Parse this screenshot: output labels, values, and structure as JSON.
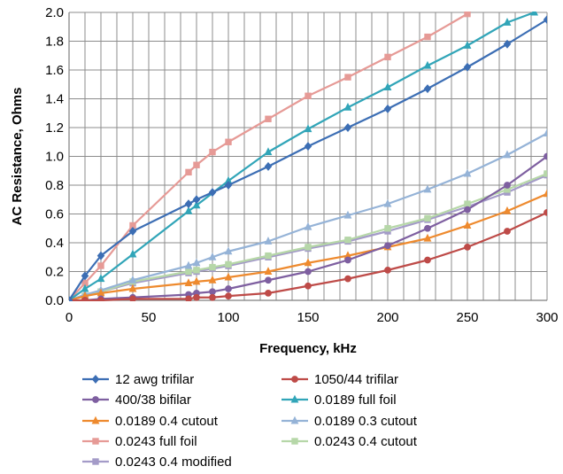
{
  "chart_data": {
    "type": "line",
    "xlabel": "Frequency, kHz",
    "ylabel": "AC Resistance, Ohms",
    "xlim": [
      0,
      300
    ],
    "ylim": [
      0,
      2.0
    ],
    "x_ticks": [
      "0",
      "50",
      "100",
      "150",
      "200",
      "250",
      "300"
    ],
    "y_ticks": [
      "0.0",
      "0.2",
      "0.4",
      "0.6",
      "0.8",
      "1.0",
      "1.2",
      "1.4",
      "1.6",
      "1.8",
      "2.0"
    ],
    "grid": true,
    "legend_position": "bottom",
    "series": [
      {
        "name": "12 awg trifilar",
        "color": "#3c6eb4",
        "marker": "diamond",
        "x": [
          0,
          10,
          20,
          40,
          75,
          80,
          90,
          100,
          125,
          150,
          175,
          200,
          225,
          250,
          275,
          300
        ],
        "y": [
          0.0,
          0.17,
          0.31,
          0.48,
          0.67,
          0.7,
          0.75,
          0.8,
          0.93,
          1.07,
          1.2,
          1.33,
          1.47,
          1.62,
          1.78,
          1.95
        ]
      },
      {
        "name": "1050/44 trifilar",
        "color": "#be4b48",
        "marker": "circle",
        "x": [
          0,
          10,
          20,
          40,
          75,
          80,
          90,
          100,
          125,
          150,
          175,
          200,
          225,
          250,
          275,
          300
        ],
        "y": [
          0.0,
          0.0,
          0.0,
          0.01,
          0.01,
          0.02,
          0.02,
          0.03,
          0.05,
          0.1,
          0.15,
          0.21,
          0.28,
          0.37,
          0.48,
          0.61
        ]
      },
      {
        "name": "400/38 bifilar",
        "color": "#7e5fa0",
        "marker": "circle",
        "x": [
          0,
          10,
          20,
          40,
          75,
          80,
          90,
          100,
          125,
          150,
          175,
          200,
          225,
          250,
          275,
          300
        ],
        "y": [
          0.0,
          0.0,
          0.01,
          0.02,
          0.04,
          0.05,
          0.06,
          0.08,
          0.14,
          0.2,
          0.28,
          0.38,
          0.5,
          0.63,
          0.8,
          1.0
        ]
      },
      {
        "name": "0.0189 full foil",
        "color": "#31a5b8",
        "marker": "triangle",
        "x": [
          0,
          10,
          20,
          40,
          75,
          80,
          100,
          125,
          150,
          175,
          200,
          225,
          250,
          275,
          292
        ],
        "y": [
          0.0,
          0.08,
          0.15,
          0.32,
          0.62,
          0.66,
          0.83,
          1.03,
          1.19,
          1.34,
          1.48,
          1.63,
          1.77,
          1.93,
          2.0
        ]
      },
      {
        "name": "0.0189 0.4 cutout",
        "color": "#ee8a2e",
        "marker": "triangle",
        "x": [
          0,
          10,
          20,
          40,
          75,
          80,
          90,
          100,
          125,
          150,
          175,
          200,
          225,
          250,
          275,
          300
        ],
        "y": [
          0.0,
          0.03,
          0.05,
          0.08,
          0.12,
          0.13,
          0.14,
          0.16,
          0.2,
          0.26,
          0.31,
          0.37,
          0.43,
          0.52,
          0.62,
          0.74
        ]
      },
      {
        "name": "0.0189 0.3 cutout",
        "color": "#95b3d7",
        "marker": "triangle",
        "x": [
          0,
          10,
          20,
          40,
          75,
          80,
          90,
          100,
          125,
          150,
          175,
          200,
          225,
          250,
          275,
          300
        ],
        "y": [
          0.0,
          0.04,
          0.07,
          0.14,
          0.24,
          0.26,
          0.3,
          0.34,
          0.41,
          0.51,
          0.59,
          0.67,
          0.77,
          0.88,
          1.01,
          1.16
        ]
      },
      {
        "name": "0.0243 full foil",
        "color": "#e69a96",
        "marker": "square",
        "x": [
          0,
          10,
          20,
          40,
          75,
          80,
          90,
          100,
          125,
          150,
          175,
          200,
          225,
          250
        ],
        "y": [
          0.0,
          0.12,
          0.24,
          0.52,
          0.89,
          0.94,
          1.03,
          1.1,
          1.26,
          1.42,
          1.55,
          1.69,
          1.83,
          1.99
        ]
      },
      {
        "name": "0.0243 0.4 cutout",
        "color": "#b6d7a8",
        "marker": "square",
        "x": [
          0,
          10,
          20,
          40,
          75,
          80,
          90,
          100,
          125,
          150,
          175,
          200,
          225,
          250,
          275,
          300
        ],
        "y": [
          0.0,
          0.03,
          0.06,
          0.13,
          0.2,
          0.21,
          0.23,
          0.25,
          0.31,
          0.37,
          0.42,
          0.5,
          0.57,
          0.67,
          0.77,
          0.88
        ]
      },
      {
        "name": "0.0243 0.4 modified",
        "color": "#a49bc8",
        "marker": "square",
        "x": [
          0,
          10,
          20,
          40,
          75,
          80,
          90,
          100,
          125,
          150,
          175,
          200,
          225,
          250,
          275,
          300
        ],
        "y": [
          0.0,
          0.03,
          0.06,
          0.12,
          0.19,
          0.2,
          0.22,
          0.24,
          0.3,
          0.36,
          0.41,
          0.48,
          0.56,
          0.65,
          0.75,
          0.87
        ]
      }
    ]
  }
}
